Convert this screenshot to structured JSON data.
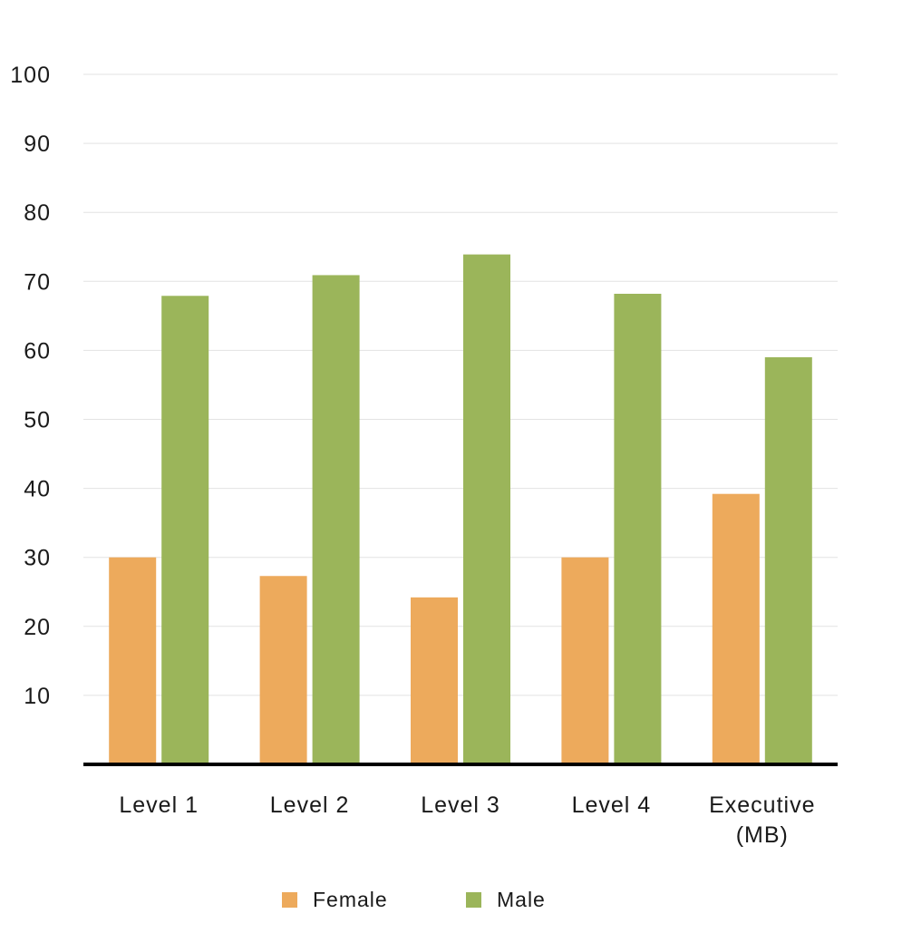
{
  "chart_data": {
    "type": "bar",
    "title": "",
    "xlabel": "",
    "ylabel": "",
    "categories": [
      "Level 1",
      "Level 2",
      "Level 3",
      "Level 4",
      "Executive (MB)"
    ],
    "category_lines": [
      [
        "Level 1"
      ],
      [
        "Level 2"
      ],
      [
        "Level 3"
      ],
      [
        "Level 4"
      ],
      [
        "Executive",
        "(MB)"
      ]
    ],
    "series": [
      {
        "name": "Female",
        "color": "#EDAA5C",
        "values": [
          30,
          27.3,
          24.2,
          30,
          39.2
        ]
      },
      {
        "name": "Male",
        "color": "#9BB55A",
        "values": [
          67.9,
          70.9,
          73.9,
          68.2,
          59
        ]
      }
    ],
    "ylim": [
      0,
      100
    ],
    "yticks": [
      10,
      20,
      30,
      40,
      50,
      60,
      70,
      80,
      90,
      100
    ],
    "grid": true,
    "legend_position": "bottom"
  }
}
